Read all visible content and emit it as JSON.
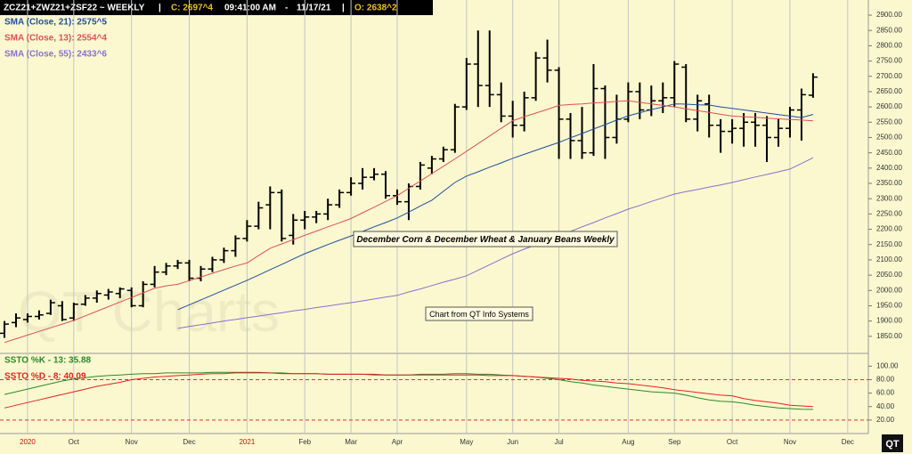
{
  "header": {
    "symbol": "ZCZ21+ZWZ21+ZSF22 ~ WEEKLY",
    "close": "C: 2697^4",
    "time": "09:41:00 AM",
    "date": "11/17/21",
    "open": "O: 2638^2"
  },
  "watermark": "QT Charts",
  "logo": "QT",
  "chart_data": [
    {
      "type": "ohlc",
      "color": "#000000",
      "open": [
        1860,
        1895,
        1905,
        1915,
        1925,
        1950,
        1910,
        1955,
        1975,
        1985,
        1990,
        2000,
        1950,
        2020,
        2060,
        2080,
        2090,
        2040,
        2070,
        2100,
        2130,
        2170,
        2210,
        2280,
        2320,
        2180,
        2230,
        2240,
        2250,
        2280,
        2320,
        2350,
        2370,
        2380,
        2310,
        2290,
        2340,
        2400,
        2430,
        2460,
        2600,
        2740,
        2670,
        2640,
        2570,
        2540,
        2630,
        2760,
        2720,
        2560,
        2490,
        2450,
        2660,
        2500,
        2560,
        2650,
        2590,
        2620,
        2630,
        2730,
        2560,
        2610,
        2540,
        2520,
        2530,
        2550,
        2540,
        2500,
        2530,
        2590,
        2638.25,
        null,
        null,
        null,
        null
      ],
      "high": [
        1900,
        1925,
        1925,
        1935,
        1970,
        1965,
        1960,
        1985,
        2000,
        2005,
        2010,
        2010,
        2030,
        2080,
        2090,
        2100,
        2100,
        2080,
        2110,
        2140,
        2180,
        2230,
        2290,
        2340,
        2330,
        2250,
        2260,
        2260,
        2300,
        2330,
        2370,
        2400,
        2400,
        2390,
        2330,
        2350,
        2420,
        2440,
        2470,
        2610,
        2760,
        2850,
        2850,
        2680,
        2620,
        2650,
        2780,
        2820,
        2730,
        2580,
        2600,
        2740,
        2670,
        2640,
        2680,
        2680,
        2670,
        2680,
        2750,
        2740,
        2640,
        2640,
        2560,
        2560,
        2580,
        2580,
        2570,
        2560,
        2600,
        2660,
        2710,
        null,
        null,
        null,
        null
      ],
      "low": [
        1845,
        1880,
        1895,
        1905,
        1920,
        1900,
        1900,
        1950,
        1960,
        1970,
        1975,
        1945,
        1945,
        2010,
        2050,
        2070,
        2030,
        2030,
        2060,
        2090,
        2110,
        2160,
        2200,
        2200,
        2160,
        2150,
        2200,
        2220,
        2230,
        2270,
        2310,
        2330,
        2360,
        2300,
        2280,
        2230,
        2330,
        2380,
        2420,
        2450,
        2590,
        2600,
        2600,
        2550,
        2500,
        2520,
        2620,
        2680,
        2430,
        2430,
        2430,
        2440,
        2430,
        2480,
        2550,
        2560,
        2570,
        2580,
        2600,
        2550,
        2520,
        2500,
        2450,
        2480,
        2470,
        2470,
        2420,
        2470,
        2500,
        2490,
        2630,
        null,
        null,
        null,
        null
      ],
      "close": [
        1890,
        1910,
        1915,
        1920,
        1960,
        1905,
        1955,
        1975,
        1990,
        1995,
        2005,
        1950,
        2020,
        2060,
        2080,
        2090,
        2040,
        2070,
        2100,
        2130,
        2170,
        2210,
        2270,
        2320,
        2170,
        2230,
        2240,
        2250,
        2280,
        2320,
        2350,
        2370,
        2380,
        2310,
        2290,
        2340,
        2410,
        2430,
        2460,
        2600,
        2740,
        2670,
        2640,
        2570,
        2540,
        2630,
        2760,
        2720,
        2560,
        2490,
        2450,
        2660,
        2500,
        2560,
        2650,
        2590,
        2620,
        2630,
        2740,
        2560,
        2620,
        2540,
        2520,
        2530,
        2550,
        2540,
        2500,
        2530,
        2590,
        2640,
        2697.5,
        null,
        null,
        null,
        null
      ],
      "series": [
        {
          "name": "SMA (Close, 21): 2575^5",
          "color": "#1f4f9f",
          "values": [
            null,
            null,
            null,
            null,
            null,
            null,
            null,
            null,
            null,
            null,
            null,
            null,
            null,
            null,
            null,
            1937,
            1953,
            1969,
            1985,
            2001,
            2017,
            2033,
            2050,
            2068,
            2085,
            2103,
            2120,
            2135,
            2150,
            2164,
            2178,
            2193,
            2208,
            2222,
            2237,
            2256,
            2276,
            2295,
            2324,
            2353,
            2374,
            2388,
            2403,
            2417,
            2432,
            2445,
            2458,
            2471,
            2484,
            2499,
            2513,
            2528,
            2542,
            2557,
            2571,
            2581,
            2591,
            2600,
            2610,
            2609,
            2607,
            2606,
            2600,
            2595,
            2590,
            2585,
            2580,
            2575,
            2570,
            2565,
            2575.625,
            null,
            null,
            null,
            null
          ]
        },
        {
          "name": "SMA (Close, 13): 2554^4",
          "color": "#e0505a",
          "values": [
            1830,
            1842,
            1854,
            1866,
            1878,
            1890,
            1902,
            1917,
            1932,
            1947,
            1962,
            1977,
            1992,
            2007,
            2015,
            2020,
            2032,
            2044,
            2056,
            2068,
            2080,
            2090,
            2114,
            2138,
            2152,
            2166,
            2180,
            2194,
            2208,
            2221,
            2235,
            2254,
            2272,
            2291,
            2310,
            2334,
            2358,
            2382,
            2406,
            2430,
            2455,
            2480,
            2505,
            2530,
            2555,
            2568,
            2580,
            2592,
            2605,
            2608,
            2610,
            2613,
            2615,
            2618,
            2620,
            2615,
            2610,
            2605,
            2600,
            2594,
            2588,
            2582,
            2576,
            2570,
            2568,
            2566,
            2563,
            2561,
            2559,
            2557,
            2554.5,
            null,
            null,
            null,
            null
          ]
        },
        {
          "name": "SMA (Close, 55): 2433^6",
          "color": "#8a6fd0",
          "values": [
            null,
            null,
            null,
            null,
            null,
            null,
            null,
            null,
            null,
            null,
            null,
            null,
            null,
            null,
            null,
            1876,
            1882,
            1888,
            1894,
            1900,
            1905,
            1911,
            1916,
            1922,
            1927,
            1933,
            1938,
            1944,
            1949,
            1955,
            1960,
            1966,
            1972,
            1978,
            1984,
            1995,
            2005,
            2016,
            2027,
            2037,
            2048,
            2066,
            2084,
            2102,
            2120,
            2135,
            2149,
            2164,
            2178,
            2193,
            2208,
            2222,
            2237,
            2251,
            2266,
            2278,
            2291,
            2303,
            2315,
            2323,
            2330,
            2338,
            2345,
            2353,
            2362,
            2371,
            2379,
            2388,
            2397,
            2415,
            2433.75,
            null,
            null,
            null,
            null
          ]
        }
      ],
      "ylim": [
        1800,
        2935
      ],
      "yticks": [
        {
          "value": 1850,
          "label": "1850.00"
        },
        {
          "value": 1900,
          "label": "1900.00"
        },
        {
          "value": 1950,
          "label": "1950.00"
        },
        {
          "value": 2000,
          "label": "2000.00"
        },
        {
          "value": 2050,
          "label": "2050.00"
        },
        {
          "value": 2100,
          "label": "2100.00"
        },
        {
          "value": 2150,
          "label": "2150.00"
        },
        {
          "value": 2200,
          "label": "2200.00"
        },
        {
          "value": 2250,
          "label": "2250.00"
        },
        {
          "value": 2300,
          "label": "2300.00"
        },
        {
          "value": 2350,
          "label": "2350.00"
        },
        {
          "value": 2400,
          "label": "2400.00"
        },
        {
          "value": 2450,
          "label": "2450.00"
        },
        {
          "value": 2500,
          "label": "2500.00"
        },
        {
          "value": 2550,
          "label": "2550.00"
        },
        {
          "value": 2600,
          "label": "2600.00"
        },
        {
          "value": 2650,
          "label": "2650.00"
        },
        {
          "value": 2700,
          "label": "2700.00"
        },
        {
          "value": 2750,
          "label": "2750.00"
        },
        {
          "value": 2800,
          "label": "2800.00"
        },
        {
          "value": 2850,
          "label": "2850.00"
        },
        {
          "value": 2900,
          "label": "2900.00"
        }
      ],
      "legend": "top-left",
      "annotations": [
        "December Corn & December Wheat & January Beans Weekly",
        "Chart from QT Info Systems"
      ]
    },
    {
      "type": "line",
      "categories": [
        null,
        null,
        "2020",
        null,
        null,
        null,
        "Oct",
        null,
        null,
        null,
        null,
        "Nov",
        null,
        null,
        null,
        null,
        "Dec",
        null,
        null,
        null,
        null,
        "2021",
        null,
        null,
        null,
        null,
        "Feb",
        null,
        null,
        null,
        "Mar",
        null,
        null,
        null,
        "Apr",
        null,
        null,
        null,
        null,
        null,
        "May",
        null,
        null,
        null,
        "Jun",
        null,
        null,
        null,
        "Jul",
        null,
        null,
        null,
        null,
        null,
        "Aug",
        null,
        null,
        null,
        "Sep",
        null,
        null,
        null,
        null,
        "Oct",
        null,
        null,
        null,
        null,
        "Nov",
        null,
        null,
        null,
        null,
        "Dec",
        null
      ],
      "series": [
        {
          "name": "SSTO %K - 13: 35.88",
          "color": "#2a8a2a",
          "values": [
            58,
            62,
            66,
            70,
            74,
            78,
            81,
            83,
            85,
            86,
            87,
            88,
            89,
            89,
            90,
            90,
            90,
            90,
            91,
            91,
            91,
            91,
            91,
            90,
            90,
            89,
            89,
            89,
            88,
            88,
            88,
            88,
            87,
            87,
            87,
            87,
            88,
            88,
            88,
            89,
            89,
            88,
            88,
            87,
            86,
            85,
            84,
            82,
            80,
            77,
            75,
            72,
            70,
            68,
            66,
            64,
            62,
            61,
            60,
            57,
            53,
            50,
            48,
            47,
            45,
            42,
            40,
            38,
            37,
            36,
            35.88,
            null,
            null,
            null,
            null
          ]
        },
        {
          "name": "SSTO %D - 8: 40.09",
          "color": "#e82020",
          "values": [
            38,
            42,
            46,
            50,
            54,
            58,
            62,
            66,
            70,
            73,
            76,
            80,
            82,
            84,
            85,
            86,
            87,
            88,
            89,
            89,
            90,
            90,
            90,
            90,
            89,
            89,
            89,
            89,
            88,
            88,
            88,
            88,
            88,
            87,
            87,
            87,
            87,
            87,
            87,
            87,
            87,
            87,
            86,
            86,
            86,
            85,
            84,
            83,
            82,
            81,
            79,
            78,
            77,
            75,
            74,
            72,
            70,
            68,
            65,
            63,
            61,
            59,
            57,
            56,
            52,
            49,
            47,
            45,
            42,
            41,
            40.09,
            null,
            null,
            null,
            null
          ]
        }
      ],
      "ylim": [
        0,
        115
      ],
      "yticks": [
        {
          "value": 20,
          "label": "20.00"
        },
        {
          "value": 40,
          "label": "40.00"
        },
        {
          "value": 60,
          "label": "60.00"
        },
        {
          "value": 80,
          "label": "80.00"
        },
        {
          "value": 100,
          "label": "100.00"
        }
      ],
      "hlines": [
        80,
        20
      ],
      "grid": "x"
    }
  ]
}
